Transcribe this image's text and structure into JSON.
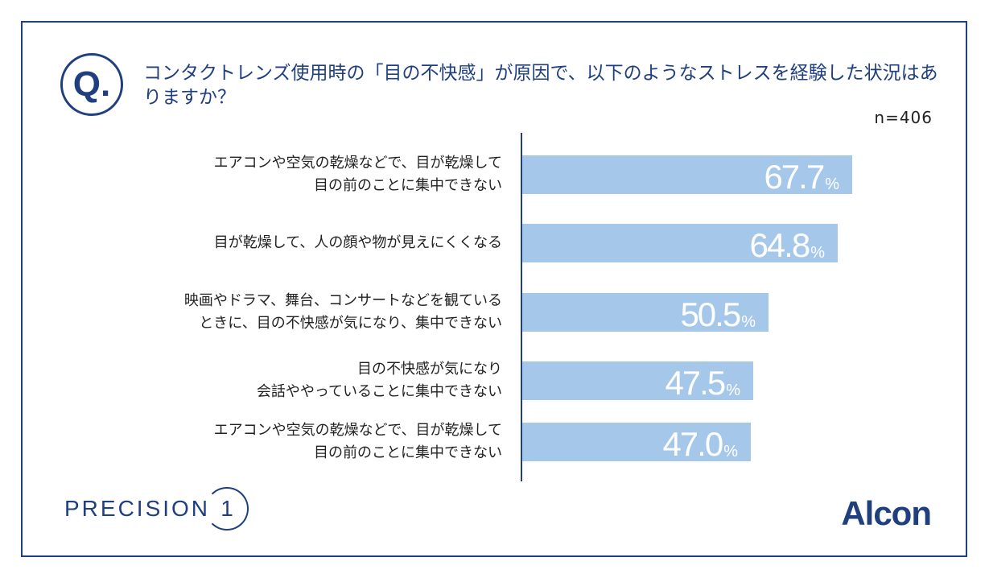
{
  "question": {
    "badge": "Q.",
    "text": "コンタクトレンズ使用時の「目の不快感」が原因で、以下のようなストレスを経験した状況はありますか？"
  },
  "sample_size": "n=406",
  "brand": {
    "left": "PRECISION",
    "left_number": "1",
    "right": "Alcon"
  },
  "colors": {
    "frame": "#1f3f7f",
    "bar": "#a5c8ea",
    "bar_text": "#ffffff"
  },
  "chart_data": {
    "type": "bar",
    "orientation": "horizontal",
    "categories": [
      [
        "エアコンや空気の乾燥などで、目が乾燥して",
        "目の前のことに集中できない"
      ],
      [
        "目が乾燥して、人の顔や物が見えにくくなる"
      ],
      [
        "映画やドラマ、舞台、コンサートなどを観ている",
        "ときに、目の不快感が気になり、集中できない"
      ],
      [
        "目の不快感が気になり",
        "会話ややっていることに集中できない"
      ],
      [
        "エアコンや空気の乾燥などで、目が乾燥して",
        "目の前のことに集中できない"
      ]
    ],
    "values": [
      67.7,
      64.8,
      50.5,
      47.5,
      47.0
    ],
    "value_labels": [
      "67.7",
      "64.8",
      "50.5",
      "47.5",
      "47.0"
    ],
    "unit": "%",
    "xlim": [
      0,
      100
    ]
  }
}
